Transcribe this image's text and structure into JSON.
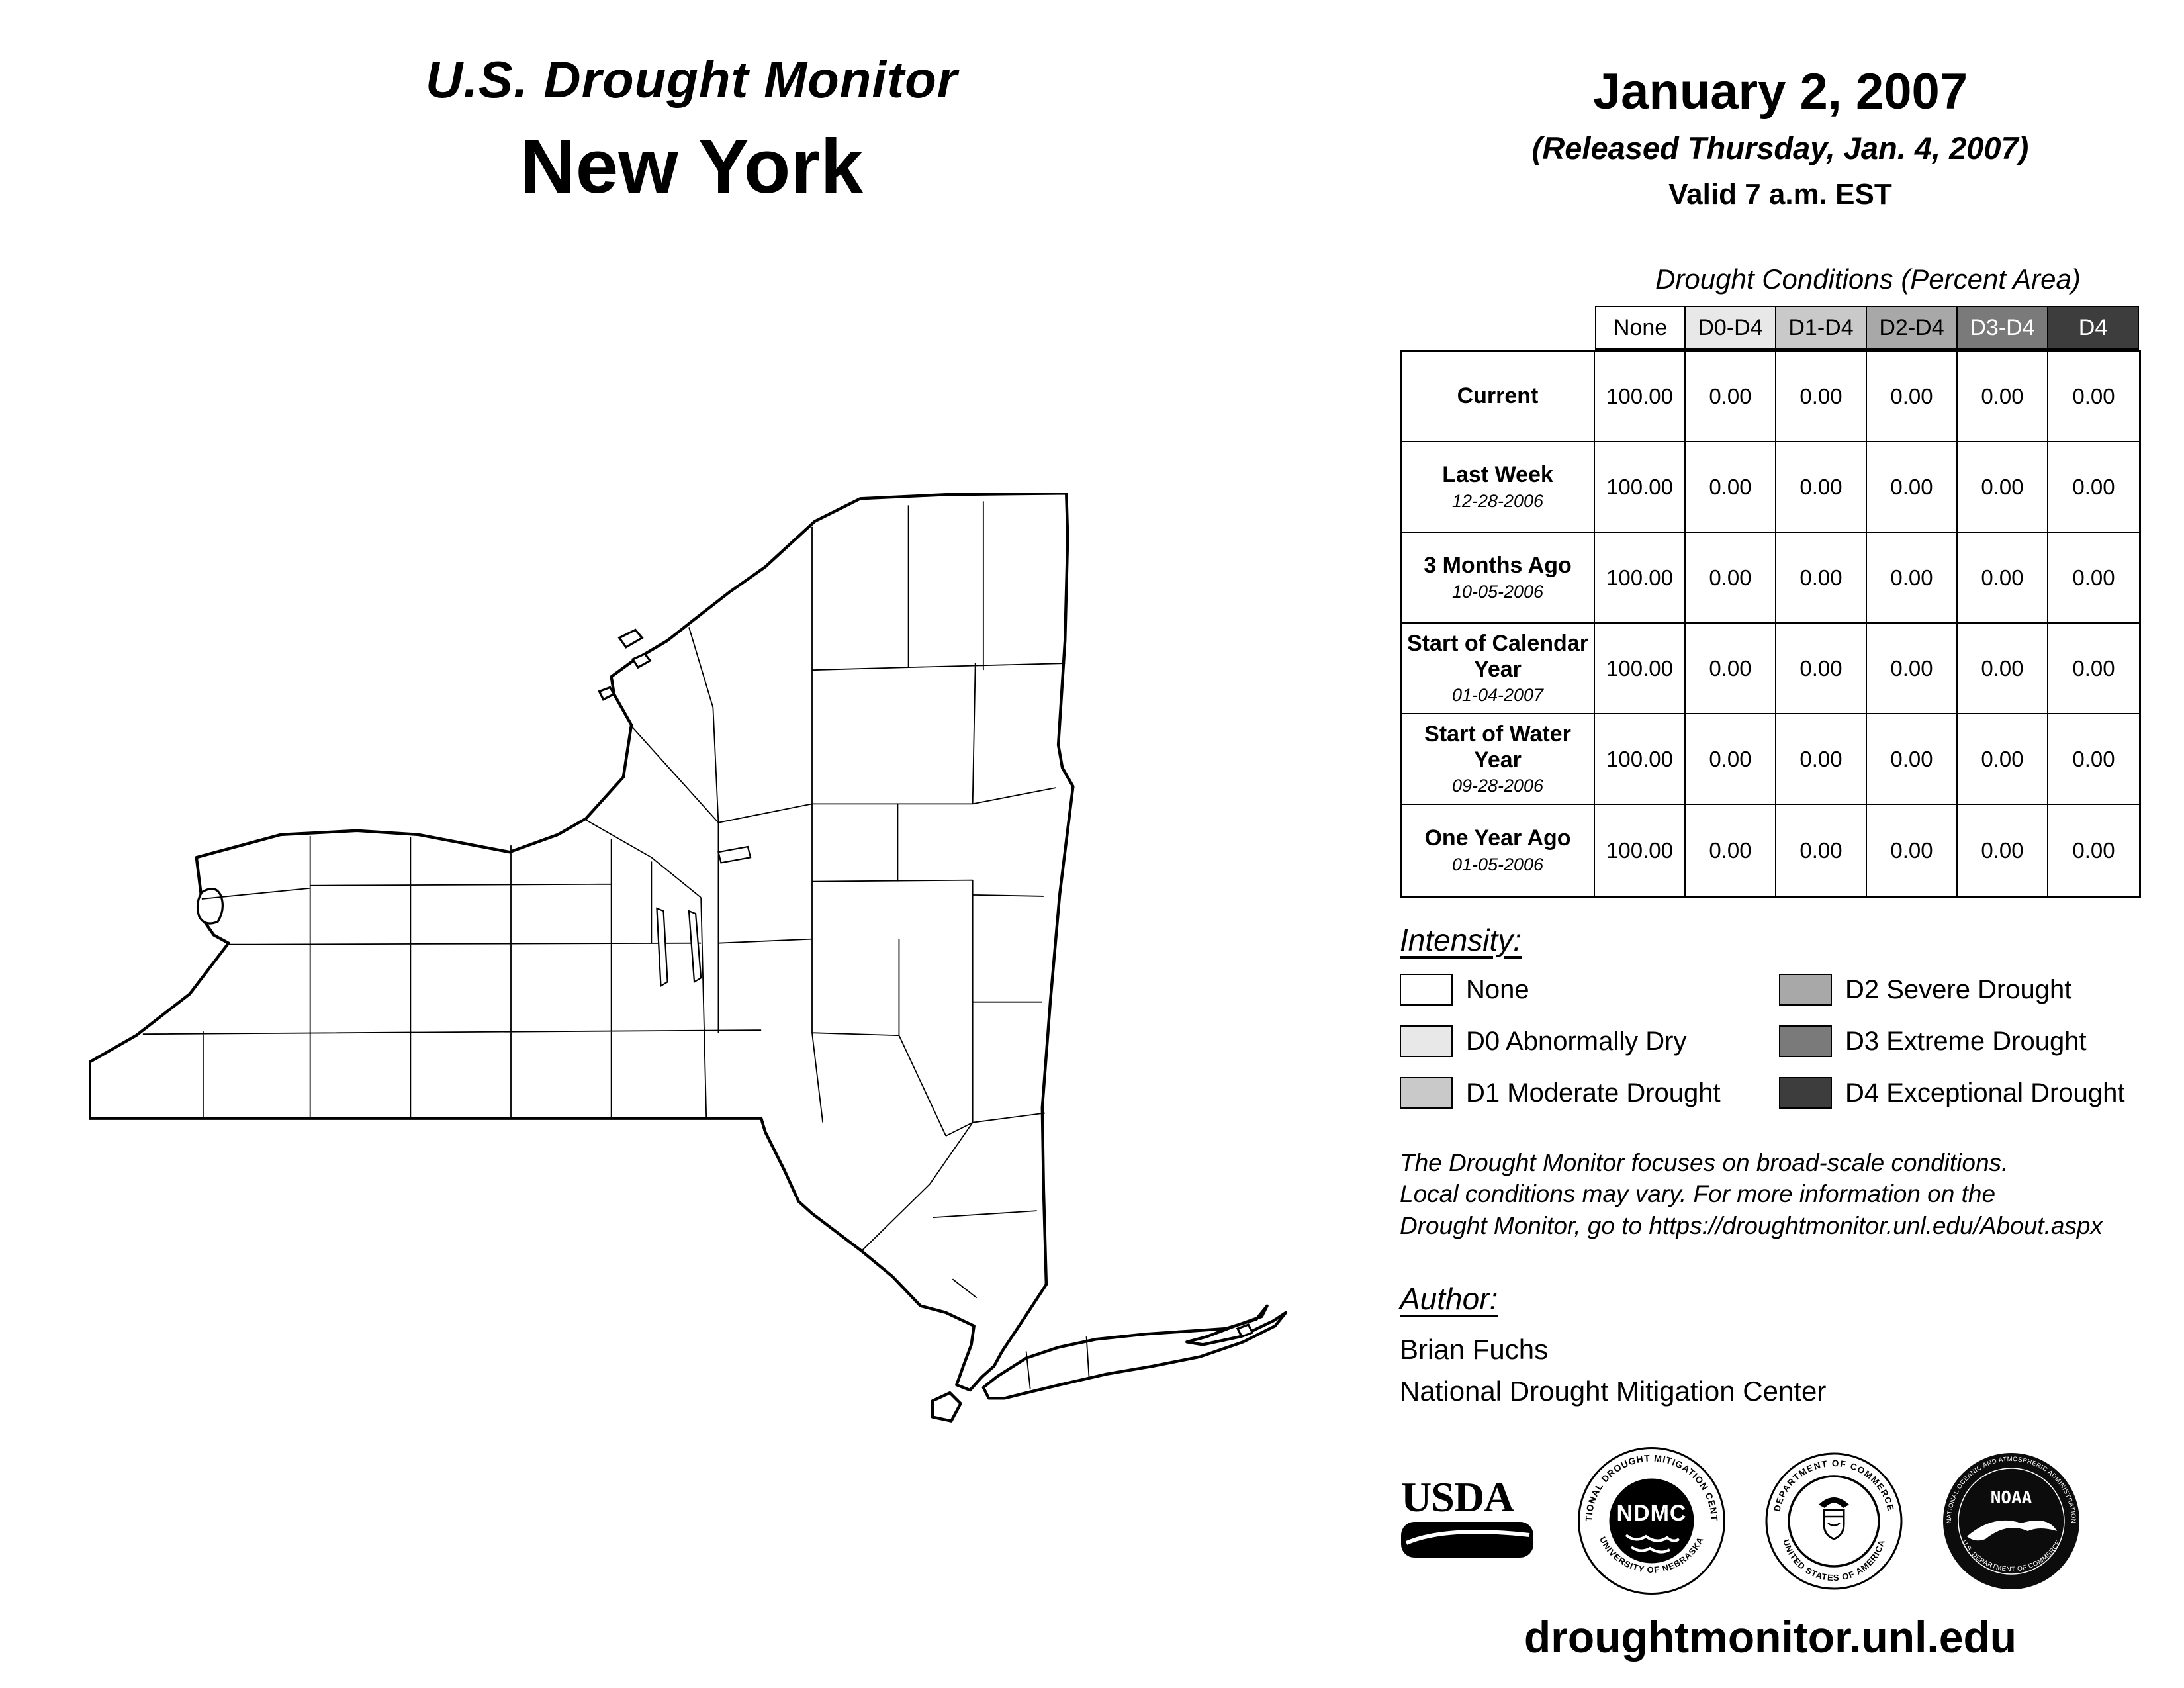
{
  "header": {
    "title_line1": "U.S. Drought Monitor",
    "title_line2": "New York",
    "date": "January 2, 2007",
    "released": "(Released Thursday, Jan. 4, 2007)",
    "valid": "Valid 7 a.m. EST"
  },
  "table": {
    "title": "Drought Conditions (Percent Area)",
    "columns": [
      "None",
      "D0-D4",
      "D1-D4",
      "D2-D4",
      "D3-D4",
      "D4"
    ],
    "column_colors": [
      "#ffffff",
      "#e8e8e8",
      "#c9c9c9",
      "#a8a8a8",
      "#7a7a7a",
      "#3d3d3d"
    ],
    "column_text_colors": [
      "#000000",
      "#000000",
      "#000000",
      "#000000",
      "#ffffff",
      "#ffffff"
    ],
    "rows": [
      {
        "label": "Current",
        "date": "",
        "values": [
          "100.00",
          "0.00",
          "0.00",
          "0.00",
          "0.00",
          "0.00"
        ]
      },
      {
        "label": "Last Week",
        "date": "12-28-2006",
        "values": [
          "100.00",
          "0.00",
          "0.00",
          "0.00",
          "0.00",
          "0.00"
        ]
      },
      {
        "label": "3 Months Ago",
        "date": "10-05-2006",
        "values": [
          "100.00",
          "0.00",
          "0.00",
          "0.00",
          "0.00",
          "0.00"
        ]
      },
      {
        "label": "Start of Calendar Year",
        "date": "01-04-2007",
        "values": [
          "100.00",
          "0.00",
          "0.00",
          "0.00",
          "0.00",
          "0.00"
        ]
      },
      {
        "label": "Start of Water Year",
        "date": "09-28-2006",
        "values": [
          "100.00",
          "0.00",
          "0.00",
          "0.00",
          "0.00",
          "0.00"
        ]
      },
      {
        "label": "One Year Ago",
        "date": "01-05-2006",
        "values": [
          "100.00",
          "0.00",
          "0.00",
          "0.00",
          "0.00",
          "0.00"
        ]
      }
    ]
  },
  "legend": {
    "heading": "Intensity:",
    "items": [
      {
        "label": "None",
        "color": "#ffffff"
      },
      {
        "label": "D0 Abnormally Dry",
        "color": "#e8e8e8"
      },
      {
        "label": "D1 Moderate Drought",
        "color": "#c9c9c9"
      },
      {
        "label": "D2 Severe Drought",
        "color": "#a8a8a8"
      },
      {
        "label": "D3 Extreme Drought",
        "color": "#7a7a7a"
      },
      {
        "label": "D4 Exceptional Drought",
        "color": "#3d3d3d"
      }
    ]
  },
  "disclaimer": {
    "line1": "The Drought Monitor focuses on broad-scale conditions.",
    "line2": "Local conditions may vary. For more information on the",
    "line3": "Drought Monitor, go to https://droughtmonitor.unl.edu/About.aspx"
  },
  "author": {
    "heading": "Author:",
    "name": "Brian Fuchs",
    "org": "National Drought Mitigation Center"
  },
  "logos": {
    "usda": "USDA",
    "ndmc": "NDMC",
    "ndmc_ring_top": "NATIONAL DROUGHT MITIGATION CENTER",
    "ndmc_ring_bottom": "UNIVERSITY OF NEBRASKA",
    "doc_ring_top": "DEPARTMENT OF COMMERCE",
    "doc_ring_bottom": "UNITED STATES OF AMERICA",
    "noaa": "NOAA",
    "noaa_ring_top": "NATIONAL OCEANIC AND ATMOSPHERIC ADMINISTRATION",
    "noaa_ring_bottom": "U.S. DEPARTMENT OF COMMERCE"
  },
  "footer": {
    "url": "droughtmonitor.unl.edu"
  }
}
